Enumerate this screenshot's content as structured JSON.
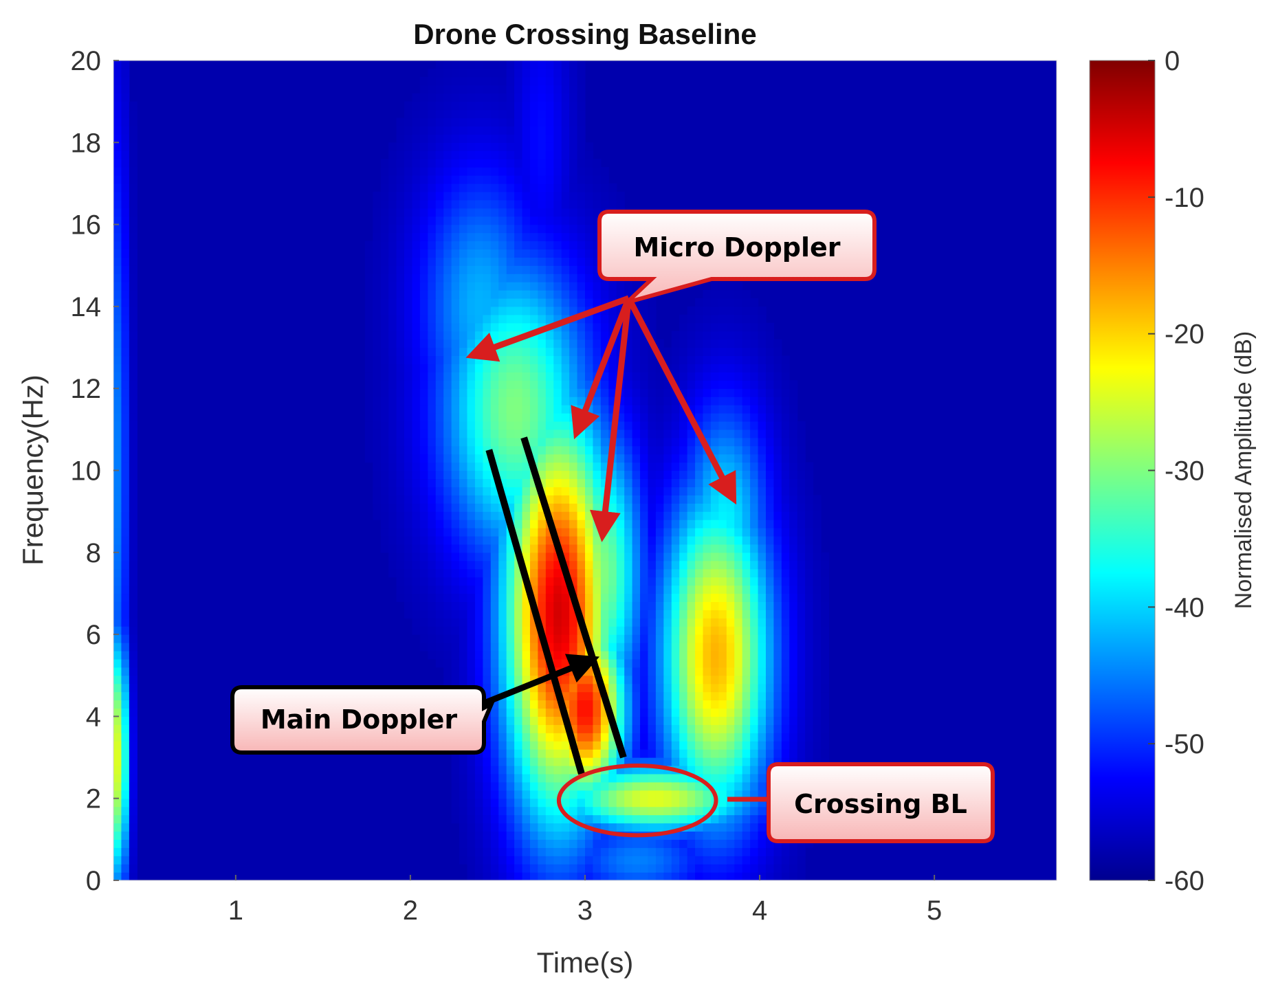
{
  "chart_data": {
    "type": "heatmap",
    "title": "Drone Crossing Baseline",
    "xlabel": "Time(s)",
    "ylabel": "Frequency(Hz)",
    "xlim": [
      0.3,
      5.7
    ],
    "ylim": [
      0,
      20
    ],
    "x_ticks": [
      "1",
      "2",
      "3",
      "4",
      "5"
    ],
    "y_ticks": [
      "0",
      "2",
      "4",
      "6",
      "8",
      "10",
      "12",
      "14",
      "16",
      "18",
      "20"
    ],
    "colorbar": {
      "label": "Normalised Amplitude (dB)",
      "range": [
        -60,
        0
      ],
      "ticks": [
        "0",
        "-10",
        "-20",
        "-30",
        "-40",
        "-50",
        "-60"
      ],
      "colormap": "jet",
      "colors": [
        "#00008f",
        "#0000ff",
        "#0080ff",
        "#00ffff",
        "#80ff80",
        "#ffff00",
        "#ff8000",
        "#ff0000",
        "#800000"
      ]
    },
    "background_db": -58,
    "blobs": [
      {
        "t": 2.6,
        "f": 11.5,
        "db": -30,
        "st": 0.3,
        "sf": 2.6
      },
      {
        "t": 2.4,
        "f": 14.0,
        "db": -42,
        "st": 0.25,
        "sf": 2.4
      },
      {
        "t": 2.85,
        "f": 6.5,
        "db": -5,
        "st": 0.22,
        "sf": 3.5
      },
      {
        "t": 3.0,
        "f": 4.2,
        "db": -8,
        "st": 0.16,
        "sf": 1.6
      },
      {
        "t": 3.1,
        "f": 7.5,
        "db": -30,
        "st": 0.16,
        "sf": 2.5
      },
      {
        "t": 3.75,
        "f": 5.5,
        "db": -18,
        "st": 0.22,
        "sf": 2.8
      },
      {
        "t": 3.8,
        "f": 8.6,
        "db": -38,
        "st": 0.18,
        "sf": 2.2
      },
      {
        "t": 3.4,
        "f": 2.0,
        "db": -24,
        "st": 0.4,
        "sf": 0.6
      },
      {
        "t": 3.3,
        "f": 0.5,
        "db": -45,
        "st": 0.3,
        "sf": 0.7
      },
      {
        "t": 2.75,
        "f": 18.0,
        "db": -52,
        "st": 0.12,
        "sf": 2.5
      },
      {
        "t": 0.33,
        "f": 3.0,
        "db": -24,
        "st": 0.04,
        "sf": 2.2
      },
      {
        "t": 0.33,
        "f": 10.0,
        "db": -45,
        "st": 0.04,
        "sf": 6.0
      }
    ],
    "annotations": {
      "micro_doppler": "Micro Doppler",
      "main_doppler": "Main Doppler",
      "crossing_bl": "Crossing BL"
    },
    "main_doppler_lines": [
      {
        "t1": 2.45,
        "f1": 10.5,
        "t2": 2.98,
        "f2": 2.6
      },
      {
        "t1": 2.65,
        "f1": 10.8,
        "t2": 3.22,
        "f2": 3.0
      }
    ],
    "micro_doppler_arrow_origin": {
      "t": 3.25,
      "f": 14.2
    },
    "micro_doppler_arrow_targets": [
      {
        "t": 2.35,
        "f": 12.8
      },
      {
        "t": 2.95,
        "f": 10.9
      },
      {
        "t": 3.1,
        "f": 8.4
      },
      {
        "t": 3.85,
        "f": 9.3
      }
    ],
    "main_doppler_arrow": {
      "from_t": 2.35,
      "from_f": 4.2,
      "to_t": 3.05,
      "to_f": 5.4
    },
    "crossing_bl_ellipse": {
      "t": 3.3,
      "f": 1.95,
      "rt": 0.45,
      "rf": 0.85
    },
    "colors": {
      "annotation_red": "#d81e1e",
      "annotation_black": "#000000",
      "callout_fill_top": "#ffffff",
      "callout_fill_bottom": "#f8b6b6"
    }
  }
}
